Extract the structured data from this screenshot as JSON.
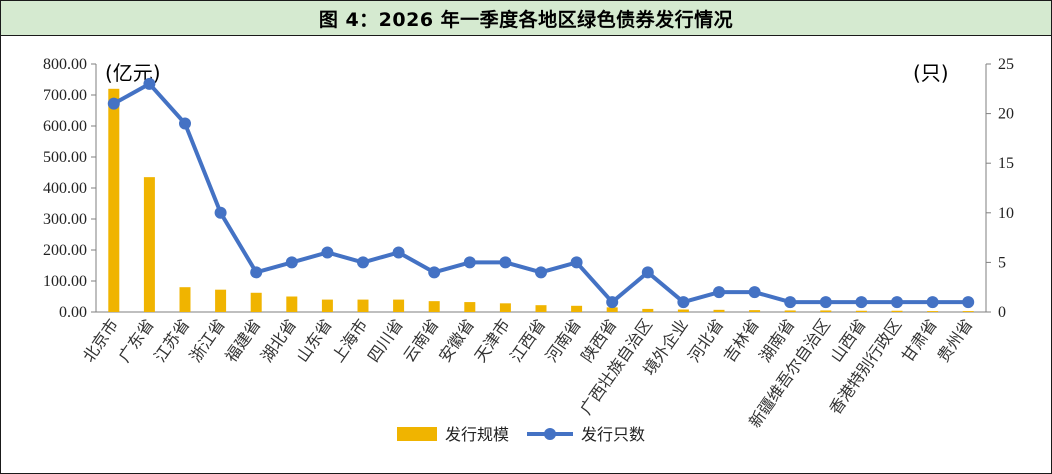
{
  "title": "图 4：2026 年一季度各地区绿色债券发行情况",
  "chart_data": {
    "type": "bar",
    "title": "图 4：2026 年一季度各地区绿色债券发行情况",
    "categories": [
      "北京市",
      "广东省",
      "江苏省",
      "浙江省",
      "福建省",
      "湖北省",
      "山东省",
      "上海市",
      "四川省",
      "云南省",
      "安徽省",
      "天津市",
      "江西省",
      "河南省",
      "陕西省",
      "广西壮族自治区",
      "境外企业",
      "河北省",
      "吉林省",
      "湖南省",
      "新疆维吾尔自治区",
      "山西省",
      "香港特别行政区",
      "甘肃省",
      "贵州省"
    ],
    "series": [
      {
        "name": "发行规模",
        "type": "bar",
        "axis": "left",
        "color": "#f0b400",
        "values": [
          720,
          435,
          80,
          72,
          62,
          50,
          40,
          40,
          40,
          35,
          32,
          28,
          22,
          20,
          15,
          10,
          8,
          7,
          6,
          5,
          5,
          4,
          4,
          3,
          3
        ]
      },
      {
        "name": "发行只数",
        "type": "line",
        "axis": "right",
        "color": "#4472c4",
        "values": [
          21,
          23,
          19,
          10,
          4,
          5,
          6,
          5,
          6,
          4,
          5,
          5,
          4,
          5,
          1,
          4,
          1,
          2,
          2,
          1,
          1,
          1,
          1,
          1,
          1
        ]
      }
    ],
    "y_left": {
      "unit_label": "(亿元)",
      "ylim": [
        0,
        800
      ],
      "ticks": [
        "0.00",
        "100.00",
        "200.00",
        "300.00",
        "400.00",
        "500.00",
        "600.00",
        "700.00",
        "800.00"
      ]
    },
    "y_right": {
      "unit_label": "(只)",
      "ylim": [
        0,
        25
      ],
      "ticks": [
        "0",
        "5",
        "10",
        "15",
        "20",
        "25"
      ]
    },
    "legend_position": "bottom",
    "grid": false
  }
}
